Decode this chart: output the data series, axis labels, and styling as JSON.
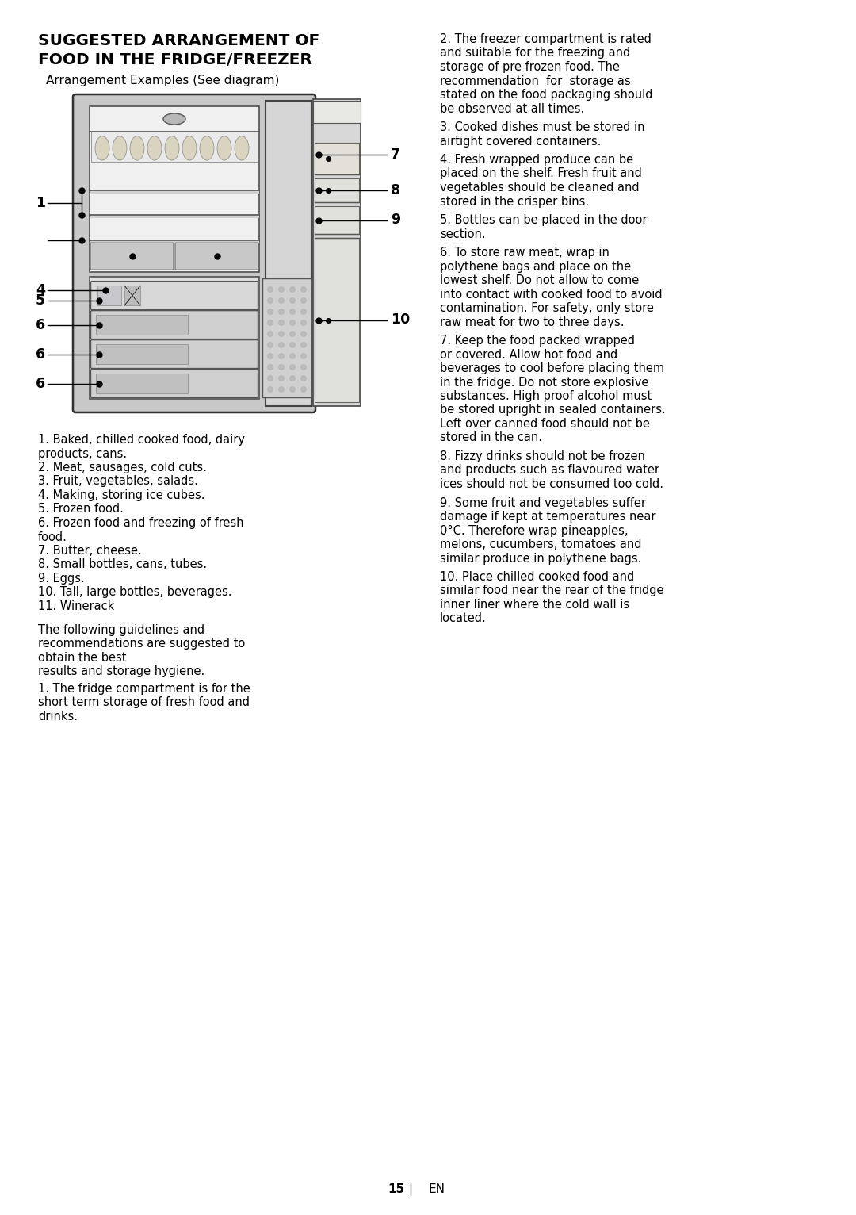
{
  "bg_color": "#ffffff",
  "text_color": "#000000",
  "title_line1": "SUGGESTED ARRANGEMENT OF",
  "title_line2": "FOOD IN THE FRIDGE/FREEZER",
  "subtitle": "Arrangement Examples (See diagram)",
  "left_col_items": [
    [
      "1. Baked, chilled cooked food, dairy",
      "products, cans."
    ],
    [
      "2. Meat, sausages, cold cuts."
    ],
    [
      "3. Fruit, vegetables, salads."
    ],
    [
      "4. Making, storing ice cubes."
    ],
    [
      "5. Frozen food."
    ],
    [
      "6. Frozen food and freezing of fresh",
      "food."
    ],
    [
      "7. Butter, cheese."
    ],
    [
      "8. Small bottles, cans, tubes."
    ],
    [
      "9. Eggs."
    ],
    [
      "10. Tall, large bottles, beverages."
    ],
    [
      "11. Winerack"
    ]
  ],
  "guidelines_intro_lines": [
    "The following guidelines and",
    "recommendations are suggested to",
    "obtain the best",
    "results and storage hygiene."
  ],
  "guideline1_lines": [
    "1. The fridge compartment is for the",
    "short term storage of fresh food and",
    "drinks."
  ],
  "right_paras": [
    [
      "2. The freezer compartment is rated",
      "and suitable for the freezing and",
      "storage of pre frozen food. The",
      "recommendation  for  storage as",
      "stated on the food packaging should",
      "be observed at all times."
    ],
    [
      "3. Cooked dishes must be stored in",
      "airtight covered containers."
    ],
    [
      "4. Fresh wrapped produce can be",
      "placed on the shelf. Fresh fruit and",
      "vegetables should be cleaned and",
      "stored in the crisper bins."
    ],
    [
      "5. Bottles can be placed in the door",
      "section."
    ],
    [
      "6. To store raw meat, wrap in",
      "polythene bags and place on the",
      "lowest shelf. Do not allow to come",
      "into contact with cooked food to avoid",
      "contamination. For safety, only store",
      "raw meat for two to three days."
    ],
    [
      "7. Keep the food packed wrapped",
      "or covered. Allow hot food and",
      "beverages to cool before placing them",
      "in the fridge. Do not store explosive",
      "substances. High proof alcohol must",
      "be stored upright in sealed containers.",
      "Left over canned food should not be",
      "stored in the can."
    ],
    [
      "8. Fizzy drinks should not be frozen",
      "and products such as flavoured water",
      "ices should not be consumed too cold."
    ],
    [
      "9. Some fruit and vegetables suffer",
      "damage if kept at temperatures near",
      "0°C. Therefore wrap pineapples,",
      "melons, cucumbers, tomatoes and",
      "similar produce in polythene bags."
    ],
    [
      "10. Place chilled cooked food and",
      "similar food near the rear of the fridge",
      "inner liner where the cold wall is",
      "located."
    ]
  ],
  "page_number": "15",
  "page_lang": "EN",
  "fs_title": 14.5,
  "fs_subtitle": 11.0,
  "fs_body": 10.5,
  "fs_label": 12.5,
  "fs_page": 11
}
